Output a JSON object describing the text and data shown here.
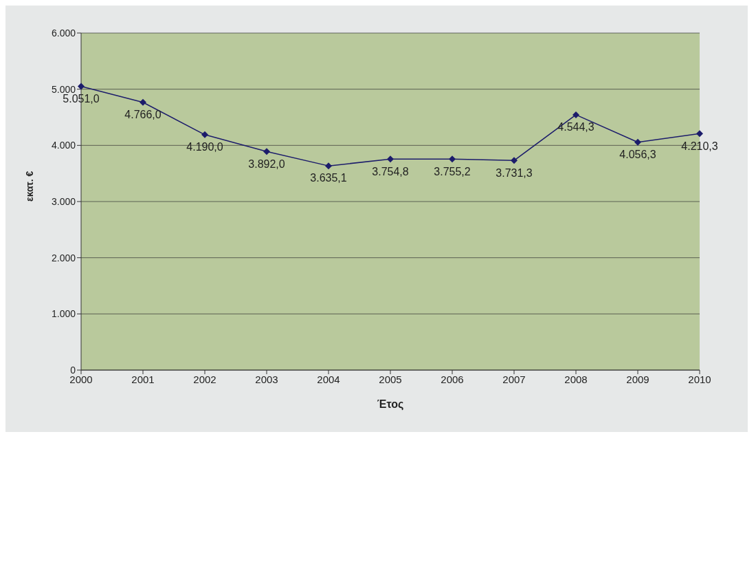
{
  "chart_data": {
    "type": "line",
    "xlabel": "Έτος",
    "ylabel": "εκατ. €",
    "categories": [
      "2000",
      "2001",
      "2002",
      "2003",
      "2004",
      "2005",
      "2006",
      "2007",
      "2008",
      "2009",
      "2010"
    ],
    "series": [
      {
        "color": "#1c1c6b",
        "values": [
          5051.0,
          4766.0,
          4190.0,
          3892.0,
          3635.1,
          3754.8,
          3755.2,
          3731.3,
          4544.3,
          4056.3,
          4210.3
        ],
        "value_labels": [
          "5.051,0",
          "4.766,0",
          "4.190,0",
          "3.892,0",
          "3.635,1",
          "3.754,8",
          "3.755,2",
          "3.731,3",
          "4.544,3",
          "4.056,3",
          "4.210,3"
        ]
      }
    ],
    "ylim": [
      0,
      6000
    ],
    "yticks": [
      {
        "value": 0,
        "label": "0"
      },
      {
        "value": 1000,
        "label": "1.000"
      },
      {
        "value": 2000,
        "label": "2.000"
      },
      {
        "value": 3000,
        "label": "3.000"
      },
      {
        "value": 4000,
        "label": "4.000"
      },
      {
        "value": 5000,
        "label": "5.000"
      },
      {
        "value": 6000,
        "label": "6.000"
      }
    ],
    "grid": "y",
    "marker": "diamond",
    "line_style": "solid",
    "legend": false
  }
}
